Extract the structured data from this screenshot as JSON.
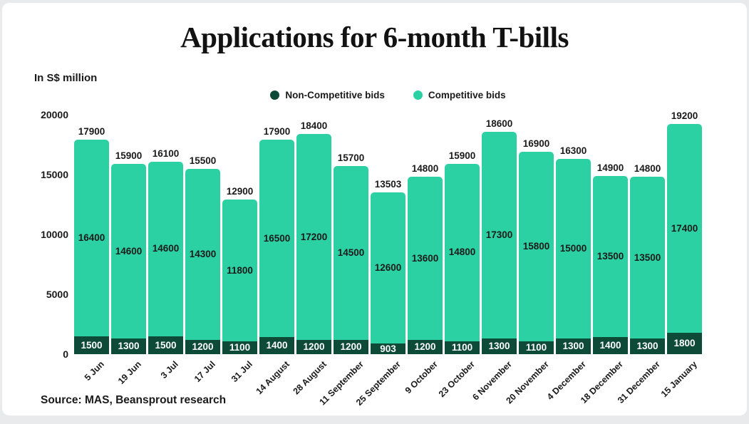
{
  "page": {
    "title": "Applications for 6-month T-bills",
    "unit_label": "In S$ million",
    "source": "Source: MAS, Beansprout research"
  },
  "colors": {
    "competitive": "#2bd1a3",
    "non_competitive": "#0d4a38",
    "text": "#1a1a1a",
    "card_bg": "#ffffff",
    "page_bg": "#e8eaec"
  },
  "chart_data": {
    "type": "bar",
    "stacked": true,
    "title": "Applications for 6-month T-bills",
    "ylabel": "In S$ million",
    "xlabel": "",
    "ylim": [
      0,
      20000
    ],
    "y_ticks": [
      0,
      5000,
      10000,
      15000,
      20000
    ],
    "grid": false,
    "legend_position": "top-center",
    "categories": [
      "5 Jun",
      "19 Jun",
      "3 Jul",
      "17 Jul",
      "31 Jul",
      "14 August",
      "28 August",
      "11 September",
      "25 September",
      "9 October",
      "23 October",
      "6 November",
      "20 November",
      "4 December",
      "18 December",
      "31 December",
      "15 January"
    ],
    "series": [
      {
        "name": "Non-Competitive bids",
        "color_key": "non_competitive",
        "values": [
          1500,
          1300,
          1500,
          1200,
          1100,
          1400,
          1200,
          1200,
          903,
          1200,
          1100,
          1300,
          1100,
          1300,
          1400,
          1300,
          1800
        ]
      },
      {
        "name": "Competitive bids",
        "color_key": "competitive",
        "values": [
          16400,
          14600,
          14600,
          14300,
          11800,
          16500,
          17200,
          14500,
          12600,
          13600,
          14800,
          17300,
          15800,
          15000,
          13500,
          13500,
          17400
        ]
      }
    ],
    "totals": [
      17900,
      15900,
      16100,
      15500,
      12900,
      17900,
      18400,
      15700,
      13503,
      14800,
      15900,
      18600,
      16900,
      16300,
      14900,
      14800,
      19200
    ],
    "source": "Source: MAS, Beansprout research"
  }
}
